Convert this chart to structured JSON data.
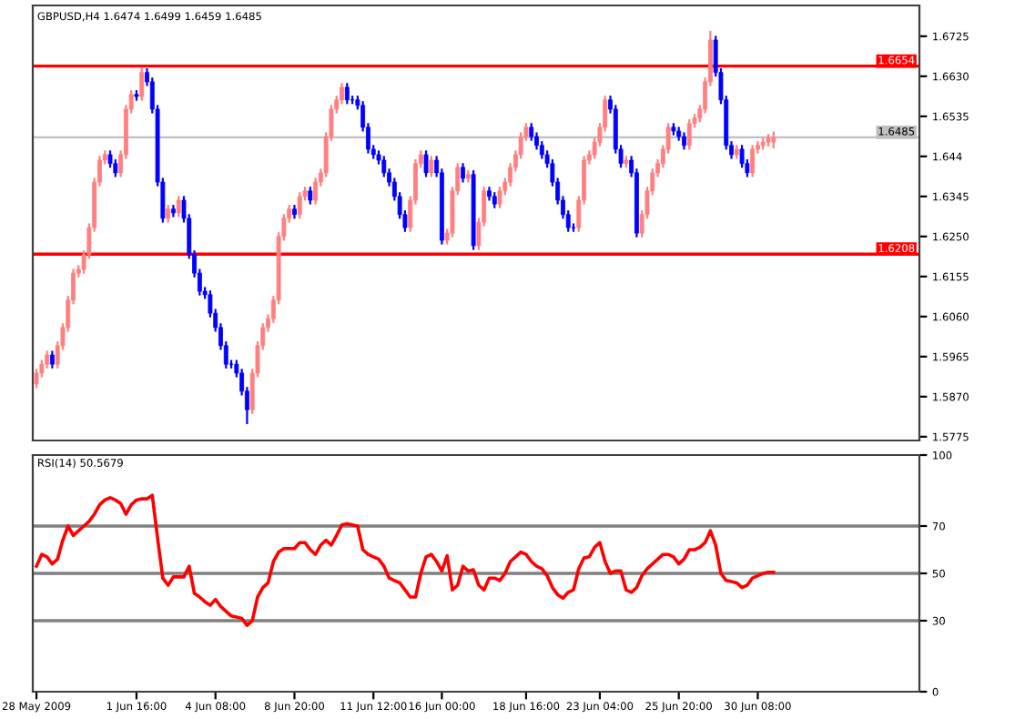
{
  "chart_data": [
    {
      "type": "candlestick",
      "title": "GBPUSD,H4 1.6474 1.6499 1.6459 1.6485",
      "categories": [
        null,
        null,
        null,
        null,
        null,
        null,
        null,
        null,
        null,
        null,
        null,
        null,
        null,
        null,
        null,
        null,
        null,
        null,
        null,
        null,
        null,
        null,
        null,
        null,
        null,
        null,
        null,
        null,
        null,
        null,
        null,
        null,
        null,
        null,
        null,
        null,
        null,
        null,
        null,
        null,
        null,
        null,
        null,
        null,
        null,
        null,
        null,
        null,
        null,
        null,
        null,
        null,
        null,
        null,
        null,
        null,
        null,
        null,
        null,
        null,
        null,
        null,
        null,
        null,
        null,
        null,
        null,
        null,
        null,
        null,
        null,
        null,
        null,
        null,
        null,
        null,
        null,
        null,
        null,
        null,
        null,
        null,
        null,
        null,
        null,
        null,
        null,
        null,
        null,
        null,
        null,
        null,
        null,
        null,
        null,
        null,
        null,
        null,
        null,
        null,
        null,
        null,
        null,
        null,
        null,
        null,
        null,
        null,
        null,
        null,
        null,
        null,
        null,
        null,
        null,
        null,
        null,
        null,
        null,
        null,
        null,
        null,
        null,
        null,
        null,
        null,
        null,
        null,
        null,
        null,
        null,
        null,
        null,
        null,
        null,
        null,
        null,
        null,
        null,
        null,
        null,
        null,
        null,
        null,
        null,
        null,
        null,
        null,
        null,
        null,
        null,
        null,
        null,
        null,
        null,
        null,
        null,
        null,
        null,
        null,
        null,
        null,
        null,
        null,
        null,
        null,
        null,
        null
      ],
      "ohlc": [
        [
          1.59,
          1.5936,
          1.589,
          1.5926
        ],
        [
          1.5926,
          1.5957,
          1.5916,
          1.5947
        ],
        [
          1.5947,
          1.5979,
          1.5937,
          1.5969
        ],
        [
          1.5969,
          1.5979,
          1.5937,
          1.5947
        ],
        [
          1.5947,
          1.6001,
          1.5937,
          1.5991
        ],
        [
          1.5991,
          1.6044,
          1.5981,
          1.6034
        ],
        [
          1.6034,
          1.6109,
          1.6024,
          1.6099
        ],
        [
          1.6099,
          1.6173,
          1.6089,
          1.6163
        ],
        [
          1.6163,
          1.6182,
          1.6153,
          1.6172
        ],
        [
          1.6172,
          1.6217,
          1.6162,
          1.6207
        ],
        [
          1.6207,
          1.6281,
          1.6197,
          1.6271
        ],
        [
          1.6271,
          1.6389,
          1.6261,
          1.6379
        ],
        [
          1.6379,
          1.6441,
          1.6369,
          1.6431
        ],
        [
          1.6431,
          1.6454,
          1.6421,
          1.6444
        ],
        [
          1.6444,
          1.6454,
          1.6413,
          1.6423
        ],
        [
          1.6423,
          1.6433,
          1.6391,
          1.6401
        ],
        [
          1.6401,
          1.6454,
          1.6391,
          1.6444
        ],
        [
          1.6444,
          1.6562,
          1.6434,
          1.6552
        ],
        [
          1.6552,
          1.6597,
          1.6542,
          1.6587
        ],
        [
          1.6587,
          1.6597,
          1.6572,
          1.6582
        ],
        [
          1.6582,
          1.6652,
          1.6572,
          1.6639
        ],
        [
          1.6639,
          1.6649,
          1.6607,
          1.6617
        ],
        [
          1.6617,
          1.6627,
          1.6542,
          1.6552
        ],
        [
          1.6552,
          1.6562,
          1.6369,
          1.6379
        ],
        [
          1.6379,
          1.6389,
          1.6283,
          1.6293
        ],
        [
          1.6293,
          1.6325,
          1.6283,
          1.6315
        ],
        [
          1.6315,
          1.6325,
          1.6296,
          1.6306
        ],
        [
          1.6306,
          1.6346,
          1.6296,
          1.6336
        ],
        [
          1.6336,
          1.6346,
          1.6283,
          1.6293
        ],
        [
          1.6293,
          1.6303,
          1.6197,
          1.6207
        ],
        [
          1.6207,
          1.6217,
          1.6153,
          1.6163
        ],
        [
          1.6163,
          1.6173,
          1.611,
          1.612
        ],
        [
          1.612,
          1.613,
          1.6102,
          1.6112
        ],
        [
          1.6112,
          1.6122,
          1.6058,
          1.6068
        ],
        [
          1.6068,
          1.6078,
          1.6024,
          1.6034
        ],
        [
          1.6034,
          1.6044,
          1.5981,
          1.5991
        ],
        [
          1.5991,
          1.6001,
          1.5937,
          1.5947
        ],
        [
          1.5947,
          1.5957,
          1.5937,
          1.5947
        ],
        [
          1.5947,
          1.5957,
          1.5916,
          1.5926
        ],
        [
          1.5926,
          1.5936,
          1.5873,
          1.5883
        ],
        [
          1.5883,
          1.5893,
          1.5805,
          1.5839
        ],
        [
          1.5839,
          1.5936,
          1.5829,
          1.5926
        ],
        [
          1.5926,
          1.6001,
          1.5916,
          1.5991
        ],
        [
          1.5991,
          1.6044,
          1.5981,
          1.6034
        ],
        [
          1.6034,
          1.6065,
          1.6024,
          1.6055
        ],
        [
          1.6055,
          1.6109,
          1.6045,
          1.6099
        ],
        [
          1.6099,
          1.626,
          1.6089,
          1.625
        ],
        [
          1.625,
          1.6303,
          1.624,
          1.6293
        ],
        [
          1.6293,
          1.6325,
          1.6283,
          1.6315
        ],
        [
          1.6315,
          1.6325,
          1.6292,
          1.6302
        ],
        [
          1.6302,
          1.6355,
          1.6292,
          1.6345
        ],
        [
          1.6345,
          1.6368,
          1.6335,
          1.6358
        ],
        [
          1.6358,
          1.6368,
          1.6326,
          1.6336
        ],
        [
          1.6336,
          1.6389,
          1.6326,
          1.6379
        ],
        [
          1.6379,
          1.6411,
          1.6369,
          1.6401
        ],
        [
          1.6401,
          1.6497,
          1.6391,
          1.6487
        ],
        [
          1.6487,
          1.6562,
          1.6477,
          1.6552
        ],
        [
          1.6552,
          1.6584,
          1.6542,
          1.6574
        ],
        [
          1.6574,
          1.6614,
          1.6564,
          1.6604
        ],
        [
          1.6604,
          1.6614,
          1.6564,
          1.6574
        ],
        [
          1.6574,
          1.6584,
          1.6564,
          1.6574
        ],
        [
          1.6574,
          1.6584,
          1.6551,
          1.6561
        ],
        [
          1.6561,
          1.6571,
          1.6499,
          1.6509
        ],
        [
          1.6509,
          1.6519,
          1.6447,
          1.6457
        ],
        [
          1.6457,
          1.6467,
          1.6434,
          1.6444
        ],
        [
          1.6444,
          1.6454,
          1.6421,
          1.6431
        ],
        [
          1.6431,
          1.6441,
          1.6391,
          1.6401
        ],
        [
          1.6401,
          1.6411,
          1.6369,
          1.6379
        ],
        [
          1.6379,
          1.6389,
          1.6335,
          1.6345
        ],
        [
          1.6345,
          1.6355,
          1.6292,
          1.6302
        ],
        [
          1.6302,
          1.6312,
          1.6261,
          1.6271
        ],
        [
          1.6271,
          1.6346,
          1.6261,
          1.6336
        ],
        [
          1.6336,
          1.6433,
          1.6326,
          1.6423
        ],
        [
          1.6423,
          1.6454,
          1.6413,
          1.6444
        ],
        [
          1.6444,
          1.6454,
          1.6391,
          1.6401
        ],
        [
          1.6401,
          1.6441,
          1.6391,
          1.6431
        ],
        [
          1.6431,
          1.6441,
          1.6391,
          1.6401
        ],
        [
          1.6401,
          1.6411,
          1.6231,
          1.6241
        ],
        [
          1.6241,
          1.6268,
          1.6231,
          1.6258
        ],
        [
          1.6258,
          1.6368,
          1.6248,
          1.6358
        ],
        [
          1.6358,
          1.6424,
          1.6348,
          1.6414
        ],
        [
          1.6414,
          1.6424,
          1.6378,
          1.6388
        ],
        [
          1.6388,
          1.6407,
          1.6378,
          1.6397
        ],
        [
          1.6397,
          1.6407,
          1.6218,
          1.6228
        ],
        [
          1.6228,
          1.6294,
          1.6218,
          1.6284
        ],
        [
          1.6284,
          1.6368,
          1.6274,
          1.6358
        ],
        [
          1.6358,
          1.6368,
          1.6335,
          1.6345
        ],
        [
          1.6345,
          1.6355,
          1.6317,
          1.6327
        ],
        [
          1.6327,
          1.6368,
          1.6317,
          1.6358
        ],
        [
          1.6358,
          1.6389,
          1.6348,
          1.6379
        ],
        [
          1.6379,
          1.6424,
          1.6369,
          1.6414
        ],
        [
          1.6414,
          1.6454,
          1.6404,
          1.6444
        ],
        [
          1.6444,
          1.6497,
          1.6434,
          1.6487
        ],
        [
          1.6487,
          1.6519,
          1.6477,
          1.6509
        ],
        [
          1.6509,
          1.6519,
          1.6477,
          1.6487
        ],
        [
          1.6487,
          1.6497,
          1.6456,
          1.6466
        ],
        [
          1.6466,
          1.6476,
          1.6434,
          1.6444
        ],
        [
          1.6444,
          1.6454,
          1.6413,
          1.6423
        ],
        [
          1.6423,
          1.6433,
          1.6369,
          1.6379
        ],
        [
          1.6379,
          1.6389,
          1.6326,
          1.6336
        ],
        [
          1.6336,
          1.6346,
          1.6292,
          1.6302
        ],
        [
          1.6302,
          1.6312,
          1.6261,
          1.6271
        ],
        [
          1.6271,
          1.6281,
          1.6261,
          1.6271
        ],
        [
          1.6271,
          1.6346,
          1.6261,
          1.6336
        ],
        [
          1.6336,
          1.6441,
          1.6326,
          1.6431
        ],
        [
          1.6431,
          1.6454,
          1.6421,
          1.6444
        ],
        [
          1.6444,
          1.6484,
          1.6434,
          1.6474
        ],
        [
          1.6474,
          1.6519,
          1.6464,
          1.6509
        ],
        [
          1.6509,
          1.6584,
          1.6499,
          1.6574
        ],
        [
          1.6574,
          1.6584,
          1.6542,
          1.6552
        ],
        [
          1.6552,
          1.6562,
          1.6447,
          1.6457
        ],
        [
          1.6457,
          1.6467,
          1.6413,
          1.6423
        ],
        [
          1.6423,
          1.6441,
          1.6413,
          1.6431
        ],
        [
          1.6431,
          1.6441,
          1.6391,
          1.6401
        ],
        [
          1.6401,
          1.6411,
          1.6248,
          1.6258
        ],
        [
          1.6258,
          1.6312,
          1.6248,
          1.6302
        ],
        [
          1.6302,
          1.6368,
          1.6292,
          1.6358
        ],
        [
          1.6358,
          1.6411,
          1.6348,
          1.6401
        ],
        [
          1.6401,
          1.6433,
          1.6391,
          1.6423
        ],
        [
          1.6423,
          1.6467,
          1.6413,
          1.6457
        ],
        [
          1.6457,
          1.6519,
          1.6447,
          1.6509
        ],
        [
          1.6509,
          1.6519,
          1.649,
          1.65
        ],
        [
          1.65,
          1.651,
          1.6477,
          1.6487
        ],
        [
          1.6487,
          1.6497,
          1.6456,
          1.6466
        ],
        [
          1.6466,
          1.6528,
          1.6456,
          1.6518
        ],
        [
          1.6518,
          1.6541,
          1.6508,
          1.6531
        ],
        [
          1.6531,
          1.6562,
          1.6521,
          1.6552
        ],
        [
          1.6552,
          1.6627,
          1.6542,
          1.6617
        ],
        [
          1.6617,
          1.6738,
          1.6607,
          1.6716
        ],
        [
          1.6716,
          1.6726,
          1.6629,
          1.6639
        ],
        [
          1.6639,
          1.6649,
          1.6564,
          1.6574
        ],
        [
          1.6574,
          1.6584,
          1.6456,
          1.6466
        ],
        [
          1.6466,
          1.6476,
          1.6434,
          1.6444
        ],
        [
          1.6444,
          1.6467,
          1.6434,
          1.6457
        ],
        [
          1.6457,
          1.6467,
          1.6413,
          1.6423
        ],
        [
          1.6423,
          1.6433,
          1.6391,
          1.6401
        ],
        [
          1.6401,
          1.6467,
          1.6391,
          1.6457
        ],
        [
          1.6457,
          1.6476,
          1.6447,
          1.6466
        ],
        [
          1.6466,
          1.6484,
          1.6456,
          1.6474
        ],
        [
          1.6474,
          1.6493,
          1.6464,
          1.6483
        ],
        [
          1.6474,
          1.6499,
          1.6459,
          1.6485
        ],
        null,
        null,
        null,
        null,
        null,
        null,
        null,
        null,
        null,
        null,
        null,
        null,
        null,
        null,
        null,
        null,
        null,
        null,
        null,
        null,
        null,
        null,
        null,
        null,
        null,
        null,
        null
      ],
      "colors": [
        "#ff8080",
        "#ff8080",
        "#ff8080",
        "#0000ff",
        "#ff8080",
        "#ff8080",
        "#ff8080",
        "#ff8080",
        "#ff8080",
        "#ff8080",
        "#ff8080",
        "#ff8080",
        "#ff8080",
        "#ff8080",
        "#0000ff",
        "#0000ff",
        "#ff8080",
        "#ff8080",
        "#ff8080",
        "#0000ff",
        "#ff8080",
        "#0000ff",
        "#0000ff",
        "#0000ff",
        "#0000ff",
        "#ff8080",
        "#0000ff",
        "#ff8080",
        "#0000ff",
        "#0000ff",
        "#0000ff",
        "#0000ff",
        "#0000ff",
        "#0000ff",
        "#0000ff",
        "#0000ff",
        "#0000ff",
        "#0000ff",
        "#0000ff",
        "#0000ff",
        "#0000ff",
        "#ff8080",
        "#ff8080",
        "#ff8080",
        "#ff8080",
        "#ff8080",
        "#ff8080",
        "#ff8080",
        "#ff8080",
        "#0000ff",
        "#ff8080",
        "#ff8080",
        "#0000ff",
        "#ff8080",
        "#ff8080",
        "#ff8080",
        "#ff8080",
        "#ff8080",
        "#ff8080",
        "#0000ff",
        "#0000ff",
        "#0000ff",
        "#0000ff",
        "#0000ff",
        "#0000ff",
        "#0000ff",
        "#0000ff",
        "#0000ff",
        "#0000ff",
        "#0000ff",
        "#0000ff",
        "#ff8080",
        "#ff8080",
        "#ff8080",
        "#0000ff",
        "#ff8080",
        "#0000ff",
        "#0000ff",
        "#ff8080",
        "#ff8080",
        "#ff8080",
        "#0000ff",
        "#ff8080",
        "#0000ff",
        "#ff8080",
        "#ff8080",
        "#0000ff",
        "#0000ff",
        "#ff8080",
        "#ff8080",
        "#ff8080",
        "#ff8080",
        "#ff8080",
        "#ff8080",
        "#0000ff",
        "#0000ff",
        "#0000ff",
        "#0000ff",
        "#0000ff",
        "#0000ff",
        "#0000ff",
        "#0000ff",
        "#0000ff",
        "#ff8080",
        "#ff8080",
        "#ff8080",
        "#ff8080",
        "#ff8080",
        "#ff8080",
        "#0000ff",
        "#0000ff",
        "#0000ff",
        "#ff8080",
        "#0000ff",
        "#0000ff",
        "#ff8080",
        "#ff8080",
        "#ff8080",
        "#ff8080",
        "#ff8080",
        "#ff8080",
        "#0000ff",
        "#0000ff",
        "#0000ff",
        "#ff8080",
        "#ff8080",
        "#ff8080",
        "#ff8080",
        "#ff8080",
        "#0000ff",
        "#0000ff",
        "#0000ff",
        "#0000ff",
        "#ff8080",
        "#0000ff",
        "#0000ff",
        "#ff8080",
        "#ff8080",
        "#ff8080",
        "#ff8080",
        "#ff8080",
        null,
        null,
        null,
        null,
        null,
        null,
        null,
        null,
        null,
        null,
        null,
        null,
        null,
        null,
        null,
        null,
        null,
        null,
        null,
        null,
        null,
        null,
        null,
        null,
        null,
        null,
        null
      ],
      "ylim": [
        1.5766,
        1.6798
      ],
      "yticks": [
        1.6725,
        {
          "value": 1.663,
          "label": "1.6630"
        },
        1.6535,
        1.644,
        1.6345,
        {
          "value": 1.625,
          "label": "1.6250"
        },
        1.6155,
        {
          "value": 1.606,
          "label": "1.6060"
        },
        1.5965,
        {
          "value": 1.587,
          "label": "1.5870"
        },
        1.5775
      ],
      "ref_lines": [
        {
          "axis": "y",
          "value": 1.6654,
          "label": "1.6654",
          "color": "#ff0000"
        },
        {
          "axis": "y",
          "value": 1.6208,
          "label": "1.6208",
          "color": "#ff0000"
        },
        {
          "axis": "y",
          "value": 1.6485,
          "label": "1.6485",
          "color": "#c0c0c0"
        }
      ],
      "grid": false,
      "tick_labels": "y"
    },
    {
      "type": "line",
      "title": "RSI(14) 50.5679",
      "categories": [
        "28 May 2009",
        null,
        null,
        null,
        null,
        null,
        null,
        null,
        null,
        null,
        null,
        null,
        null,
        null,
        null,
        null,
        null,
        null,
        null,
        "1 Jun 16:00",
        null,
        null,
        null,
        null,
        null,
        null,
        null,
        null,
        null,
        null,
        null,
        null,
        null,
        null,
        "4 Jun 08:00",
        null,
        null,
        null,
        null,
        null,
        null,
        null,
        null,
        null,
        null,
        null,
        null,
        null,
        null,
        "8 Jun 20:00",
        null,
        null,
        null,
        null,
        null,
        null,
        null,
        null,
        null,
        null,
        null,
        null,
        null,
        null,
        "11 Jun 12:00",
        null,
        null,
        null,
        null,
        null,
        null,
        null,
        null,
        null,
        null,
        null,
        null,
        "16 Jun 00:00",
        null,
        null,
        null,
        null,
        null,
        null,
        null,
        null,
        null,
        null,
        null,
        null,
        null,
        null,
        null,
        "18 Jun 16:00",
        null,
        null,
        null,
        null,
        null,
        null,
        null,
        null,
        null,
        null,
        null,
        null,
        null,
        "23 Jun 04:00",
        null,
        null,
        null,
        null,
        null,
        null,
        null,
        null,
        null,
        null,
        null,
        null,
        null,
        null,
        "25 Jun 20:00",
        null,
        null,
        null,
        null,
        null,
        null,
        null,
        null,
        null,
        null,
        null,
        null,
        null,
        null,
        "30 Jun 08:00",
        null,
        null,
        null,
        null,
        null,
        null,
        null,
        null,
        null,
        null,
        null,
        null,
        null,
        null,
        null,
        null,
        null,
        null,
        null,
        null,
        null,
        null,
        null,
        null,
        null,
        null,
        null,
        null,
        null,
        null
      ],
      "series": [
        {
          "color": "#ff0000",
          "values": [
            53,
            58,
            57,
            54,
            56,
            64,
            70,
            66,
            68,
            70,
            72,
            75,
            79,
            81,
            82,
            81,
            79.5,
            75,
            79,
            81,
            81.5,
            81.5,
            83,
            65,
            48,
            45,
            48.5,
            48.5,
            48.5,
            53,
            41.5,
            40,
            38,
            36.5,
            39,
            36,
            34,
            32,
            31.5,
            31,
            28,
            30,
            40,
            44,
            46,
            55,
            59,
            60.5,
            60.5,
            60.5,
            63,
            63,
            60,
            58,
            62,
            64,
            62,
            66,
            70.5,
            71,
            70.5,
            70,
            60,
            58,
            57,
            56,
            53,
            48,
            47,
            46,
            43,
            40,
            40,
            50,
            57,
            58,
            55,
            51,
            57.5,
            43,
            45,
            53,
            51,
            51.5,
            45,
            43,
            48,
            48,
            47,
            50,
            55,
            57,
            59,
            58,
            55,
            53,
            52,
            49,
            44,
            41,
            39.5,
            42,
            43,
            52,
            56.5,
            57,
            61,
            63,
            55,
            50,
            51,
            51,
            43,
            42,
            44,
            49,
            52,
            54,
            56,
            58,
            58,
            57,
            54,
            56,
            60,
            60,
            61,
            63,
            68,
            62,
            50,
            47,
            46.5,
            46,
            44,
            45,
            48,
            49,
            50,
            50.5,
            50.5,
            null,
            null,
            null,
            null,
            null,
            null,
            null,
            null,
            null,
            null,
            null,
            null,
            null,
            null,
            null,
            null,
            null,
            null,
            null,
            null,
            null,
            null,
            null,
            null,
            null,
            null,
            null
          ]
        }
      ],
      "ylim": [
        0,
        100
      ],
      "yticks": [
        100,
        70,
        50,
        30,
        0
      ],
      "ref_lines": [
        {
          "axis": "y",
          "value": 70,
          "color": "#808080"
        },
        {
          "axis": "y",
          "value": 50,
          "color": "#808080"
        },
        {
          "axis": "y",
          "value": 30,
          "color": "#808080"
        }
      ],
      "grid": false,
      "marker": "none",
      "line_style": "solid"
    }
  ]
}
